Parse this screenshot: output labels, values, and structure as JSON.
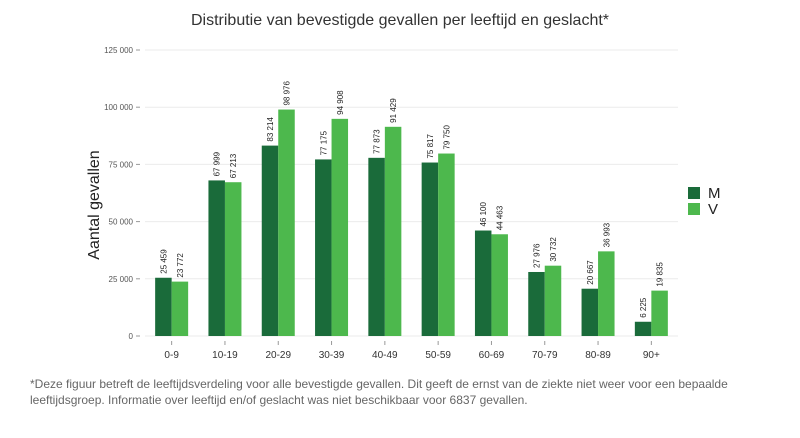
{
  "chart_data": {
    "type": "bar",
    "title": "Distributie van bevestigde gevallen per leeftijd en geslacht*",
    "xlabel": "",
    "ylabel": "Aantal gevallen",
    "ylim": [
      0,
      125000
    ],
    "yticks": [
      0,
      25000,
      50000,
      75000,
      100000,
      125000
    ],
    "ytick_labels": [
      "0",
      "25 000",
      "50 000",
      "75 000",
      "100 000",
      "125 000"
    ],
    "categories": [
      "0-9",
      "10-19",
      "20-29",
      "30-39",
      "40-49",
      "50-59",
      "60-69",
      "70-79",
      "80-89",
      "90+"
    ],
    "series": [
      {
        "name": "M",
        "color": "#1a6b3a",
        "values": [
          25459,
          67999,
          83214,
          77175,
          77873,
          75817,
          46100,
          27976,
          20667,
          6225
        ],
        "labels": [
          "25 459",
          "67 999",
          "83 214",
          "77 175",
          "77 873",
          "75 817",
          "46 100",
          "27 976",
          "20 667",
          "6 225"
        ]
      },
      {
        "name": "V",
        "color": "#4db84d",
        "values": [
          23772,
          67213,
          98976,
          94908,
          91429,
          79750,
          44463,
          30732,
          36993,
          19835
        ],
        "labels": [
          "23 772",
          "67 213",
          "98 976",
          "94 908",
          "91 429",
          "79 750",
          "44 463",
          "30 732",
          "36 993",
          "19 835"
        ]
      }
    ],
    "grid": true,
    "legend_position": "right"
  },
  "footnote": "*Deze figuur betreft de leeftijdsverdeling voor alle bevestigde gevallen. Dit geeft de ernst van de ziekte niet weer voor een bepaalde leeftijdsgroep. Informatie over leeftijd en/of geslacht was niet beschikbaar voor 6837 gevallen."
}
